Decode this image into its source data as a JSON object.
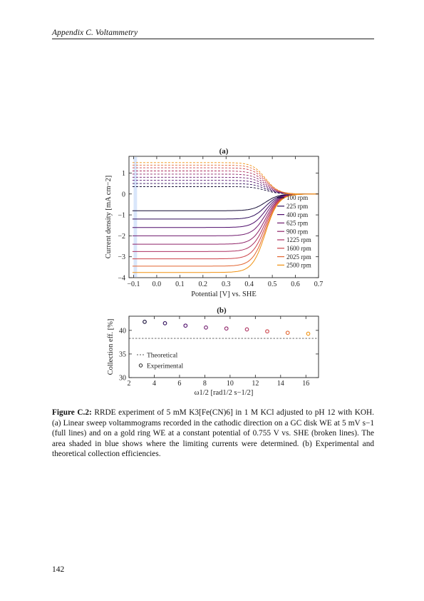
{
  "page": {
    "running_head": "Appendix C.  Voltammetry",
    "page_number": "142"
  },
  "caption": {
    "label": "Figure C.2:",
    "text": "RRDE experiment of 5 mM K3[Fe(CN)6] in 1 M KCl adjusted to pH 12 with KOH. (a) Linear sweep voltammograms recorded in the cathodic direction on a GC disk WE at 5 mV s−1 (full lines) and on a gold ring WE at a constant potential of 0.755 V vs. SHE (broken lines). The area shaded in blue shows where the limiting currents were determined. (b) Experimental and theoretical collection efficiencies."
  },
  "colors": {
    "rpm": [
      "#140b35",
      "#2d0b59",
      "#4e0c6b",
      "#6f1a6e",
      "#8f2469",
      "#ad3060",
      "#cc4248",
      "#e36530",
      "#f0900e"
    ],
    "shade": "#cfe0fa",
    "theoretical": "#555555"
  },
  "chart_data": [
    {
      "type": "line",
      "title": "(a)",
      "xlabel": "Potential [V] vs. SHE",
      "ylabel": "Current density [mA cm−2]",
      "xlim": [
        -0.12,
        0.7
      ],
      "ylim": [
        -4.0,
        1.8
      ],
      "xticks": [
        -0.1,
        0.0,
        0.1,
        0.2,
        0.3,
        0.4,
        0.5,
        0.6,
        0.7
      ],
      "xtick_labels": [
        "−0.1",
        "0.0",
        "0.1",
        "0.2",
        "0.3",
        "0.4",
        "0.5",
        "0.6",
        "0.7"
      ],
      "yticks": [
        1,
        0,
        -1,
        -2,
        -3,
        -4
      ],
      "ytick_labels": [
        "1",
        "0",
        "−1",
        "−2",
        "−3",
        "−4"
      ],
      "shaded_x_range": [
        -0.1,
        -0.085
      ],
      "grid": false,
      "legend_position": "lower right",
      "half_wave_potential_V": 0.47,
      "series": [
        {
          "name": "100 rpm",
          "disk_limiting_current": -0.8,
          "ring_limiting_current": 0.35
        },
        {
          "name": "225 rpm",
          "disk_limiting_current": -1.2,
          "ring_limiting_current": 0.5
        },
        {
          "name": "400 rpm",
          "disk_limiting_current": -1.6,
          "ring_limiting_current": 0.65
        },
        {
          "name": "625 rpm",
          "disk_limiting_current": -2.0,
          "ring_limiting_current": 0.8
        },
        {
          "name": "900 rpm",
          "disk_limiting_current": -2.4,
          "ring_limiting_current": 0.95
        },
        {
          "name": "1225 rpm",
          "disk_limiting_current": -2.75,
          "ring_limiting_current": 1.1
        },
        {
          "name": "1600 rpm",
          "disk_limiting_current": -3.1,
          "ring_limiting_current": 1.25
        },
        {
          "name": "2025 rpm",
          "disk_limiting_current": -3.45,
          "ring_limiting_current": 1.38
        },
        {
          "name": "2500 rpm",
          "disk_limiting_current": -3.75,
          "ring_limiting_current": 1.5
        }
      ],
      "legend_entries": [
        "100 rpm",
        "225 rpm",
        "400 rpm",
        "625 rpm",
        "900 rpm",
        "1225 rpm",
        "1600 rpm",
        "2025 rpm",
        "2500 rpm"
      ]
    },
    {
      "type": "scatter",
      "title": "(b)",
      "xlabel": "ω1/2 [rad1/2 s−1/2]",
      "ylabel": "Collection eff. [%]",
      "xlim": [
        2,
        17
      ],
      "ylim": [
        30,
        43
      ],
      "xticks": [
        2,
        4,
        6,
        8,
        10,
        12,
        14,
        16
      ],
      "xtick_labels": [
        "2",
        "4",
        "6",
        "8",
        "10",
        "12",
        "14",
        "16"
      ],
      "yticks": [
        30,
        35,
        40
      ],
      "ytick_labels": [
        "30",
        "35",
        "40"
      ],
      "grid": false,
      "legend_position": "lower left",
      "theoretical_value": 38.3,
      "experimental": {
        "x": [
          3.24,
          4.85,
          6.47,
          8.09,
          9.71,
          11.33,
          12.94,
          14.56,
          16.18
        ],
        "y": [
          41.8,
          41.5,
          41.0,
          40.6,
          40.4,
          40.2,
          39.8,
          39.5,
          39.3
        ]
      },
      "legend_entries": [
        "Theoretical",
        "Experimental"
      ]
    }
  ]
}
